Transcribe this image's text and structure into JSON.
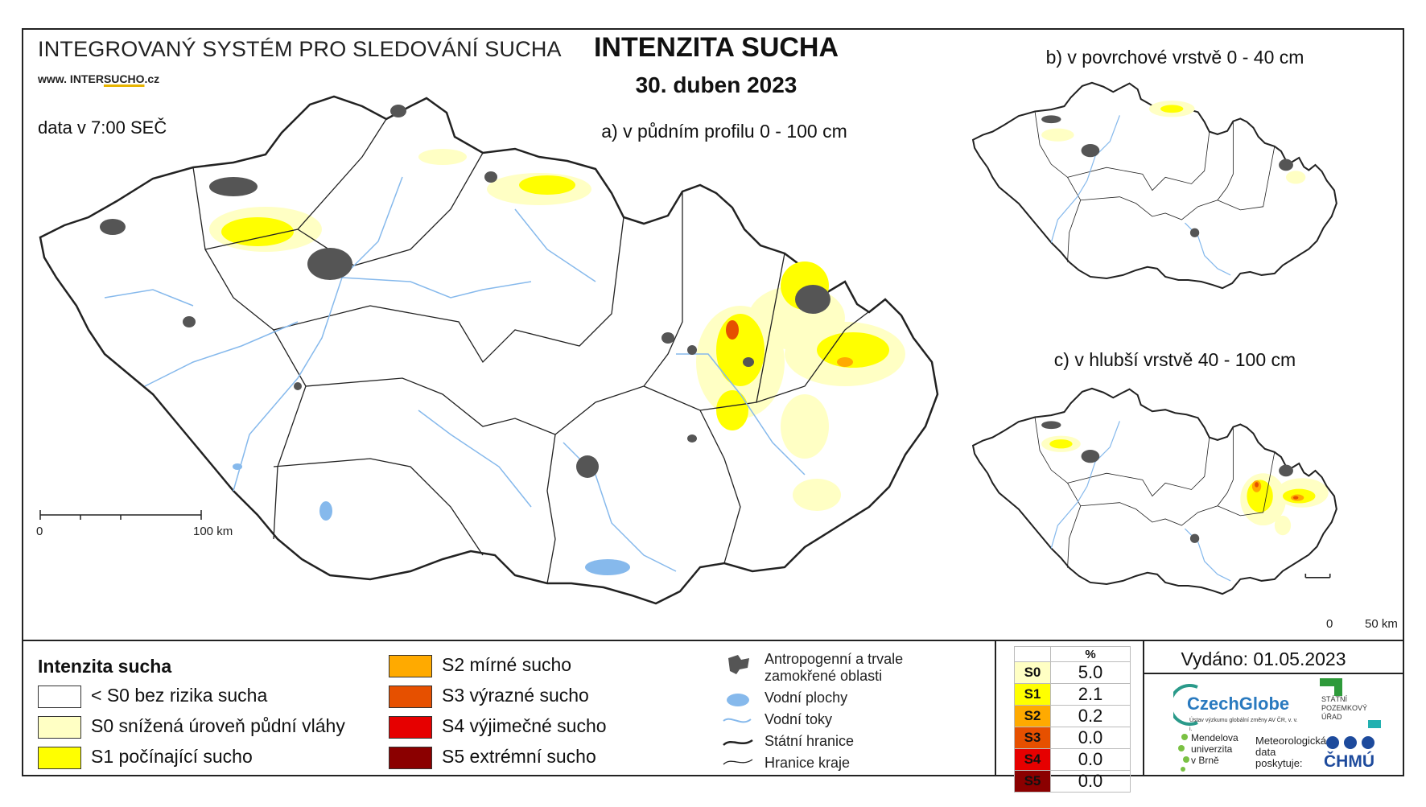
{
  "header": {
    "system_title": "INTEGROVANÝ SYSTÉM PRO SLEDOVÁNÍ SUCHA",
    "website_prefix": "www. INTER",
    "website_highlight": "SUCHO",
    "website_suffix": ".cz",
    "main_title": "INTENZITA SUCHA",
    "date": "30. duben 2023",
    "data_time": "data v 7:00 SEČ"
  },
  "maps": {
    "a_label": "a) v půdním profilu 0 - 100 cm",
    "b_label": "b) v povrchové vrstvě 0 - 40 cm",
    "c_label": "c) v hlubší vrstvě 40 - 100 cm",
    "scale_main": {
      "start": "0",
      "end": "100 km"
    },
    "scale_small": {
      "start": "0",
      "end": "50 km"
    }
  },
  "legend": {
    "title": "Intenzita sucha",
    "classes": [
      {
        "label": "< S0 bez rizika sucha",
        "color": "#ffffff"
      },
      {
        "label": "S0 snížená úroveň půdní vláhy",
        "color": "#ffffc4"
      },
      {
        "label": "S1 počínající sucho",
        "color": "#ffff00"
      },
      {
        "label": "S2 mírné sucho",
        "color": "#ffaa00"
      },
      {
        "label": "S3 výrazné sucho",
        "color": "#e65000"
      },
      {
        "label": "S4 výjimečné sucho",
        "color": "#e60000"
      },
      {
        "label": "S5 extrémní sucho",
        "color": "#8b0000"
      }
    ],
    "symbols": [
      {
        "name": "urban-symbol",
        "label": "Antropogenní a trvale zamokřené oblasti"
      },
      {
        "name": "water-body-symbol",
        "label": "Vodní plochy"
      },
      {
        "name": "river-symbol",
        "label": "Vodní toky"
      },
      {
        "name": "state-border-symbol",
        "label": "Státní hranice"
      },
      {
        "name": "region-border-symbol",
        "label": "Hranice kraje"
      }
    ]
  },
  "percent_table": {
    "header": "%",
    "rows": [
      {
        "code": "S0",
        "value": "5.0",
        "color": "#ffffc4"
      },
      {
        "code": "S1",
        "value": "2.1",
        "color": "#ffff00"
      },
      {
        "code": "S2",
        "value": "0.2",
        "color": "#ffaa00"
      },
      {
        "code": "S3",
        "value": "0.0",
        "color": "#e65000"
      },
      {
        "code": "S4",
        "value": "0.0",
        "color": "#e60000"
      },
      {
        "code": "S5",
        "value": "0.0",
        "color": "#8b0000"
      }
    ]
  },
  "footer": {
    "issued": "Vydáno: 01.05.2023",
    "czechglobe": "CzechGlobe",
    "czechglobe_sub": "Ústav výzkumu globální změny AV ČR, v. v. i.",
    "spu": "STÁTNÍ POZEMKOVÝ ÚŘAD",
    "mendel_1": "Mendelova",
    "mendel_2": "univerzita",
    "mendel_3": "v Brně",
    "meteo_1": "Meteorologická",
    "meteo_2": "data",
    "meteo_3": "poskytuje:",
    "chmu": "ČHMÚ"
  }
}
